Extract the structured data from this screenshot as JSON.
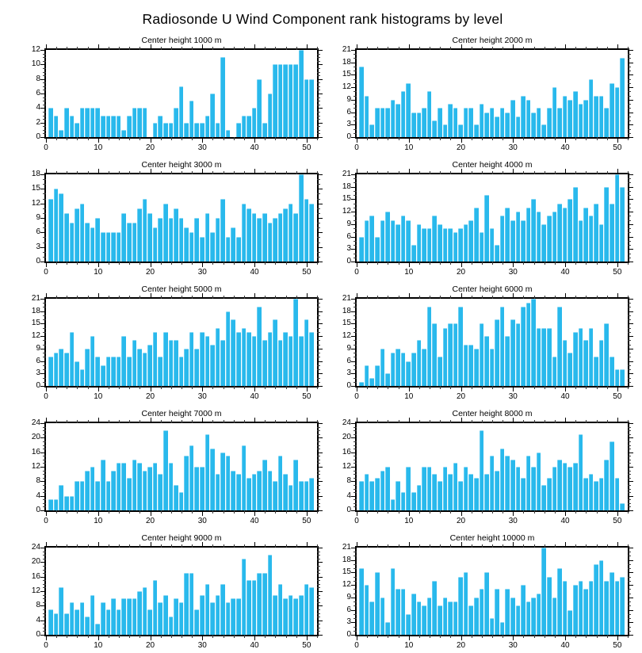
{
  "page_title": "Radiosonde U Wind Component rank histograms by level",
  "chart_data": [
    {
      "type": "bar",
      "title": "Center height 1000 m",
      "xlabel": "",
      "ylabel": "",
      "xmax": 52,
      "x_major_ticks": [
        0,
        10,
        20,
        30,
        40,
        50
      ],
      "x_minor_step": 2,
      "ylim": [
        0,
        12
      ],
      "yticks": [
        0,
        2,
        4,
        6,
        8,
        10,
        12
      ],
      "y_minor_step": 0.5,
      "grid": false,
      "legend": "none",
      "values": [
        4,
        3,
        1,
        4,
        3,
        2,
        4,
        4,
        4,
        4,
        3,
        3,
        3,
        3,
        1,
        3,
        4,
        4,
        4,
        0,
        2,
        3,
        2,
        2,
        4,
        7,
        2,
        5,
        2,
        2,
        3,
        6,
        2,
        11,
        1,
        0,
        2,
        3,
        3,
        4,
        8,
        2,
        6,
        10,
        10,
        10,
        10,
        10,
        12,
        8,
        8
      ]
    },
    {
      "type": "bar",
      "title": "Center height 2000 m",
      "xlabel": "",
      "ylabel": "",
      "xmax": 52,
      "x_major_ticks": [
        0,
        10,
        20,
        30,
        40,
        50
      ],
      "x_minor_step": 2,
      "ylim": [
        0,
        21
      ],
      "yticks": [
        0,
        3,
        6,
        9,
        12,
        15,
        18,
        21
      ],
      "y_minor_step": 1,
      "grid": false,
      "legend": "none",
      "values": [
        17,
        10,
        3,
        7,
        7,
        7,
        9,
        8,
        11,
        13,
        6,
        6,
        7,
        11,
        4,
        7,
        3,
        8,
        7,
        3,
        7,
        7,
        3,
        8,
        6,
        7,
        5,
        7,
        6,
        9,
        5,
        10,
        9,
        6,
        7,
        3,
        7,
        12,
        7,
        10,
        9,
        11,
        8,
        9,
        14,
        10,
        10,
        7,
        13,
        12,
        19
      ]
    },
    {
      "type": "bar",
      "title": "Center height 3000 m",
      "xlabel": "",
      "ylabel": "",
      "xmax": 52,
      "x_major_ticks": [
        0,
        10,
        20,
        30,
        40,
        50
      ],
      "x_minor_step": 2,
      "ylim": [
        0,
        18
      ],
      "yticks": [
        0,
        3,
        6,
        9,
        12,
        15,
        18
      ],
      "y_minor_step": 1,
      "grid": false,
      "legend": "none",
      "values": [
        13,
        15,
        14,
        10,
        8,
        11,
        12,
        8,
        7,
        9,
        6,
        6,
        6,
        6,
        10,
        8,
        8,
        11,
        13,
        10,
        7,
        9,
        12,
        9,
        11,
        9,
        7,
        6,
        9,
        5,
        10,
        6,
        9,
        13,
        5,
        7,
        5,
        12,
        11,
        10,
        9,
        10,
        8,
        9,
        10,
        11,
        12,
        10,
        18,
        13,
        12
      ]
    },
    {
      "type": "bar",
      "title": "Center height 4000 m",
      "xlabel": "",
      "ylabel": "",
      "xmax": 52,
      "x_major_ticks": [
        0,
        10,
        20,
        30,
        40,
        50
      ],
      "x_minor_step": 2,
      "ylim": [
        0,
        21
      ],
      "yticks": [
        0,
        3,
        6,
        9,
        12,
        15,
        18,
        21
      ],
      "y_minor_step": 1,
      "grid": false,
      "legend": "none",
      "values": [
        6,
        10,
        11,
        6,
        10,
        12,
        10,
        9,
        11,
        10,
        4,
        9,
        8,
        8,
        11,
        9,
        8,
        8,
        7,
        8,
        9,
        10,
        13,
        7,
        16,
        8,
        4,
        11,
        13,
        10,
        12,
        10,
        13,
        15,
        12,
        9,
        11,
        12,
        14,
        13,
        15,
        18,
        10,
        13,
        11,
        14,
        9,
        18,
        14,
        21,
        18
      ]
    },
    {
      "type": "bar",
      "title": "Center height 5000 m",
      "xlabel": "",
      "ylabel": "",
      "xmax": 52,
      "x_major_ticks": [
        0,
        10,
        20,
        30,
        40,
        50
      ],
      "x_minor_step": 2,
      "ylim": [
        0,
        21
      ],
      "yticks": [
        0,
        3,
        6,
        9,
        12,
        15,
        18,
        21
      ],
      "y_minor_step": 1,
      "grid": false,
      "legend": "none",
      "values": [
        7,
        8,
        9,
        8,
        13,
        6,
        4,
        9,
        12,
        7,
        5,
        7,
        7,
        7,
        12,
        7,
        11,
        9,
        8,
        10,
        13,
        7,
        13,
        11,
        11,
        7,
        9,
        13,
        9,
        13,
        12,
        10,
        14,
        11,
        18,
        16,
        13,
        14,
        13,
        12,
        19,
        11,
        13,
        16,
        11,
        13,
        12,
        21,
        12,
        16,
        13
      ]
    },
    {
      "type": "bar",
      "title": "Center height 6000 m",
      "xlabel": "",
      "ylabel": "",
      "xmax": 52,
      "x_major_ticks": [
        0,
        10,
        20,
        30,
        40,
        50
      ],
      "x_minor_step": 2,
      "ylim": [
        0,
        21
      ],
      "yticks": [
        0,
        3,
        6,
        9,
        12,
        15,
        18,
        21
      ],
      "y_minor_step": 1,
      "grid": false,
      "legend": "none",
      "values": [
        1,
        5,
        2,
        5,
        9,
        3,
        8,
        9,
        8,
        6,
        8,
        11,
        9,
        19,
        15,
        7,
        14,
        15,
        15,
        19,
        10,
        10,
        9,
        15,
        12,
        9,
        16,
        19,
        12,
        16,
        15,
        19,
        20,
        21,
        14,
        14,
        14,
        7,
        19,
        11,
        8,
        13,
        14,
        11,
        14,
        7,
        11,
        15,
        7,
        4,
        4
      ]
    },
    {
      "type": "bar",
      "title": "Center height 7000 m",
      "xlabel": "",
      "ylabel": "",
      "xmax": 52,
      "x_major_ticks": [
        0,
        10,
        20,
        30,
        40,
        50
      ],
      "x_minor_step": 2,
      "ylim": [
        0,
        24
      ],
      "yticks": [
        0,
        4,
        8,
        12,
        16,
        20,
        24
      ],
      "y_minor_step": 1,
      "grid": false,
      "legend": "none",
      "values": [
        3,
        3,
        7,
        4,
        4,
        8,
        8,
        11,
        12,
        8,
        14,
        8,
        11,
        13,
        13,
        9,
        14,
        13,
        11,
        12,
        13,
        10,
        22,
        13,
        7,
        5,
        15,
        18,
        12,
        12,
        21,
        17,
        10,
        16,
        15,
        11,
        10,
        18,
        9,
        10,
        11,
        14,
        11,
        8,
        15,
        10,
        7,
        14,
        8,
        8,
        9
      ]
    },
    {
      "type": "bar",
      "title": "Center height 8000 m",
      "xlabel": "",
      "ylabel": "",
      "xmax": 52,
      "x_major_ticks": [
        0,
        10,
        20,
        30,
        40,
        50
      ],
      "x_minor_step": 2,
      "ylim": [
        0,
        24
      ],
      "yticks": [
        0,
        4,
        8,
        12,
        16,
        20,
        24
      ],
      "y_minor_step": 1,
      "grid": false,
      "legend": "none",
      "values": [
        8,
        10,
        8,
        9,
        11,
        12,
        3,
        8,
        5,
        12,
        5,
        7,
        12,
        12,
        10,
        8,
        12,
        10,
        13,
        8,
        12,
        10,
        9,
        22,
        10,
        15,
        11,
        17,
        15,
        14,
        12,
        9,
        15,
        12,
        16,
        7,
        9,
        12,
        14,
        13,
        12,
        13,
        21,
        9,
        10,
        8,
        9,
        14,
        19,
        9,
        2
      ]
    },
    {
      "type": "bar",
      "title": "Center height 9000 m",
      "xlabel": "",
      "ylabel": "",
      "xmax": 52,
      "x_major_ticks": [
        0,
        10,
        20,
        30,
        40,
        50
      ],
      "x_minor_step": 2,
      "ylim": [
        0,
        24
      ],
      "yticks": [
        0,
        4,
        8,
        12,
        16,
        20,
        24
      ],
      "y_minor_step": 1,
      "grid": false,
      "legend": "none",
      "values": [
        7,
        6,
        13,
        6,
        9,
        7,
        9,
        5,
        11,
        3,
        9,
        7,
        10,
        7,
        10,
        10,
        10,
        12,
        13,
        7,
        15,
        9,
        11,
        5,
        10,
        9,
        17,
        17,
        7,
        11,
        14,
        9,
        11,
        14,
        9,
        10,
        10,
        21,
        15,
        15,
        17,
        17,
        22,
        11,
        14,
        10,
        11,
        10,
        11,
        14,
        13
      ]
    },
    {
      "type": "bar",
      "title": "Center height 10000 m",
      "xlabel": "",
      "ylabel": "",
      "xmax": 52,
      "x_major_ticks": [
        0,
        10,
        20,
        30,
        40,
        50
      ],
      "x_minor_step": 2,
      "ylim": [
        0,
        21
      ],
      "yticks": [
        0,
        3,
        6,
        9,
        12,
        15,
        18,
        21
      ],
      "y_minor_step": 1,
      "grid": false,
      "legend": "none",
      "values": [
        16,
        12,
        8,
        15,
        9,
        3,
        16,
        11,
        11,
        5,
        10,
        8,
        7,
        9,
        13,
        7,
        9,
        8,
        8,
        14,
        15,
        7,
        9,
        11,
        15,
        4,
        11,
        3,
        11,
        9,
        7,
        12,
        8,
        9,
        10,
        21,
        14,
        9,
        16,
        13,
        6,
        12,
        13,
        11,
        13,
        17,
        18,
        13,
        15,
        13,
        14
      ]
    }
  ],
  "bar_color": "#29B9EC"
}
